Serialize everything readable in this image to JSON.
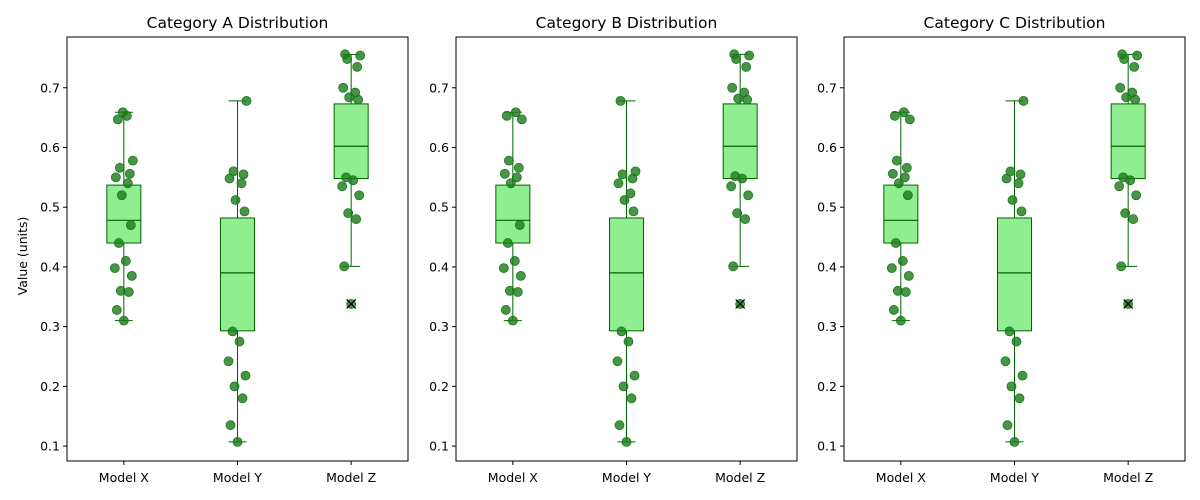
{
  "figure": {
    "ylabel": "Value (units)"
  },
  "colors": {
    "box_fill": "#90EE90",
    "box_edge": "#006400",
    "point": "#1a7a1a",
    "outlier_marker": "#000000",
    "axes": "#000000"
  },
  "chart_data": [
    {
      "type": "box",
      "title": "Category A Distribution",
      "ylabel": "Value (units)",
      "ylim": [
        0.075,
        0.785
      ],
      "yticks": [
        0.1,
        0.2,
        0.3,
        0.4,
        0.5,
        0.6,
        0.7
      ],
      "categories": [
        "Model X",
        "Model Y",
        "Model Z"
      ],
      "boxes": [
        {
          "name": "Model X",
          "q1": 0.44,
          "median": 0.478,
          "q3": 0.537,
          "whisker_low": 0.31,
          "whisker_high": 0.659,
          "outliers": []
        },
        {
          "name": "Model Y",
          "q1": 0.293,
          "median": 0.39,
          "q3": 0.482,
          "whisker_low": 0.107,
          "whisker_high": 0.678,
          "outliers": []
        },
        {
          "name": "Model Z",
          "q1": 0.548,
          "median": 0.602,
          "q3": 0.673,
          "whisker_low": 0.401,
          "whisker_high": 0.756,
          "outliers": [
            0.338
          ]
        }
      ],
      "points": [
        [
          0.31,
          0.328,
          0.358,
          0.36,
          0.385,
          0.398,
          0.41,
          0.44,
          0.47,
          0.52,
          0.54,
          0.55,
          0.556,
          0.566,
          0.578,
          0.647,
          0.653,
          0.659
        ],
        [
          0.107,
          0.135,
          0.18,
          0.2,
          0.218,
          0.242,
          0.275,
          0.292,
          0.493,
          0.512,
          0.54,
          0.548,
          0.555,
          0.56,
          0.678
        ],
        [
          0.338,
          0.401,
          0.48,
          0.49,
          0.52,
          0.535,
          0.545,
          0.55,
          0.68,
          0.684,
          0.692,
          0.7,
          0.735,
          0.748,
          0.754,
          0.756
        ]
      ]
    },
    {
      "type": "box",
      "title": "Category B Distribution",
      "ylim": [
        0.075,
        0.785
      ],
      "yticks": [
        0.1,
        0.2,
        0.3,
        0.4,
        0.5,
        0.6,
        0.7
      ],
      "categories": [
        "Model X",
        "Model Y",
        "Model Z"
      ],
      "boxes": [
        {
          "name": "Model X",
          "q1": 0.44,
          "median": 0.478,
          "q3": 0.537,
          "whisker_low": 0.31,
          "whisker_high": 0.659,
          "outliers": []
        },
        {
          "name": "Model Y",
          "q1": 0.293,
          "median": 0.39,
          "q3": 0.482,
          "whisker_low": 0.107,
          "whisker_high": 0.678,
          "outliers": []
        },
        {
          "name": "Model Z",
          "q1": 0.548,
          "median": 0.602,
          "q3": 0.673,
          "whisker_low": 0.401,
          "whisker_high": 0.756,
          "outliers": [
            0.338
          ]
        }
      ],
      "points": [
        [
          0.31,
          0.328,
          0.358,
          0.36,
          0.385,
          0.398,
          0.41,
          0.44,
          0.47,
          0.54,
          0.55,
          0.556,
          0.566,
          0.578,
          0.647,
          0.653,
          0.659
        ],
        [
          0.107,
          0.135,
          0.18,
          0.2,
          0.218,
          0.242,
          0.275,
          0.292,
          0.493,
          0.512,
          0.523,
          0.54,
          0.548,
          0.555,
          0.56,
          0.678
        ],
        [
          0.338,
          0.401,
          0.48,
          0.49,
          0.52,
          0.535,
          0.548,
          0.552,
          0.68,
          0.682,
          0.692,
          0.7,
          0.735,
          0.748,
          0.754,
          0.756
        ]
      ]
    },
    {
      "type": "box",
      "title": "Category C Distribution",
      "ylim": [
        0.075,
        0.785
      ],
      "yticks": [
        0.1,
        0.2,
        0.3,
        0.4,
        0.5,
        0.6,
        0.7
      ],
      "categories": [
        "Model X",
        "Model Y",
        "Model Z"
      ],
      "boxes": [
        {
          "name": "Model X",
          "q1": 0.44,
          "median": 0.478,
          "q3": 0.537,
          "whisker_low": 0.31,
          "whisker_high": 0.659,
          "outliers": []
        },
        {
          "name": "Model Y",
          "q1": 0.293,
          "median": 0.39,
          "q3": 0.482,
          "whisker_low": 0.107,
          "whisker_high": 0.678,
          "outliers": []
        },
        {
          "name": "Model Z",
          "q1": 0.548,
          "median": 0.602,
          "q3": 0.673,
          "whisker_low": 0.401,
          "whisker_high": 0.756,
          "outliers": [
            0.338
          ]
        }
      ],
      "points": [
        [
          0.31,
          0.328,
          0.358,
          0.36,
          0.385,
          0.398,
          0.41,
          0.44,
          0.52,
          0.54,
          0.55,
          0.556,
          0.566,
          0.578,
          0.647,
          0.653,
          0.659
        ],
        [
          0.107,
          0.135,
          0.18,
          0.2,
          0.218,
          0.242,
          0.275,
          0.292,
          0.493,
          0.512,
          0.54,
          0.548,
          0.555,
          0.56,
          0.678
        ],
        [
          0.338,
          0.401,
          0.48,
          0.49,
          0.52,
          0.535,
          0.545,
          0.55,
          0.68,
          0.684,
          0.692,
          0.7,
          0.735,
          0.748,
          0.754,
          0.756
        ]
      ]
    }
  ]
}
